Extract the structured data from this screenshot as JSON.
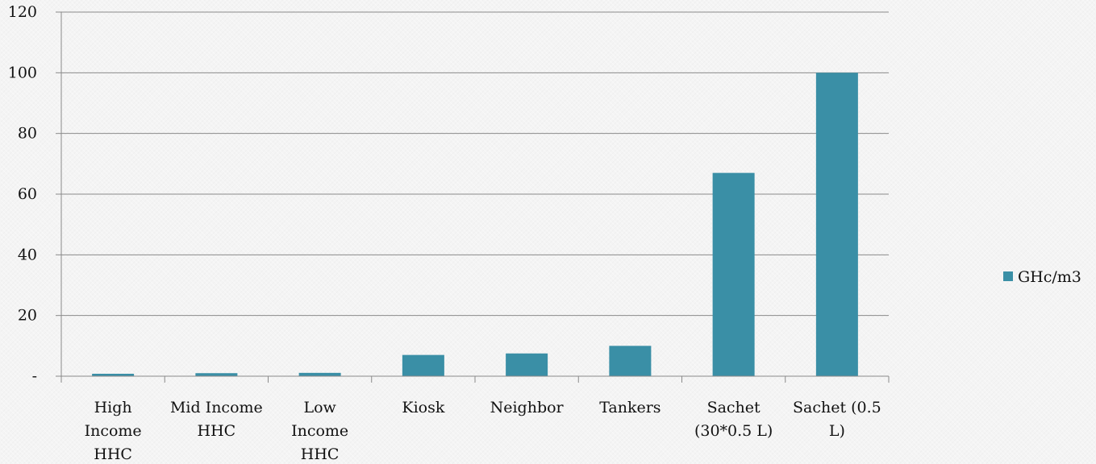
{
  "chart_data": {
    "type": "bar",
    "categories": [
      [
        "High",
        "Income",
        "HHC"
      ],
      [
        "Mid Income",
        "HHC"
      ],
      [
        "Low",
        "Income",
        "HHC"
      ],
      [
        "Kiosk"
      ],
      [
        "Neighbor"
      ],
      [
        "Tankers"
      ],
      [
        "Sachet",
        "(30*0.5 L)"
      ],
      [
        "Sachet (0.5",
        "L)"
      ]
    ],
    "series": [
      {
        "name": "GHc/m3",
        "color": "#3a8fa6",
        "values": [
          0.8,
          1.0,
          1.1,
          7,
          7.5,
          10,
          67,
          100
        ]
      }
    ],
    "ylim": [
      0,
      120
    ],
    "yticks": [
      0,
      20,
      40,
      60,
      80,
      100,
      120
    ],
    "ytick_labels": [
      "-",
      "20",
      "40",
      "60",
      "80",
      "100",
      "120"
    ],
    "grid": true,
    "legend": "right",
    "title": "",
    "xlabel": "",
    "ylabel": ""
  }
}
